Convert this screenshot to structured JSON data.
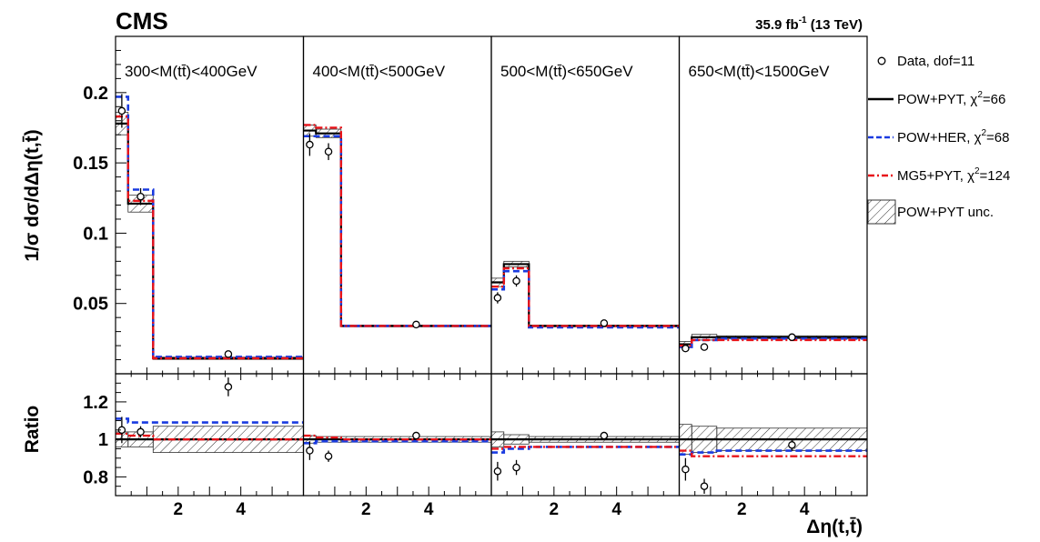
{
  "header": {
    "experiment": "CMS",
    "lumi_value": "35.9 fb",
    "lumi_exp": "-1",
    "lumi_energy": " (13 TeV)"
  },
  "axes": {
    "ylabel_main": "1/σ dσ/dΔη(t,t̄)",
    "ylabel_ratio": "Ratio",
    "xlabel": "Δη(t,t̄)"
  },
  "legend": [
    {
      "key": "data",
      "label": "Data, dof=11",
      "sup": "",
      "label_after": ""
    },
    {
      "key": "powpyt",
      "label": "POW+PYT, χ",
      "sup": "2",
      "label_after": "=66"
    },
    {
      "key": "powher",
      "label": "POW+HER, χ",
      "sup": "2",
      "label_after": "=68"
    },
    {
      "key": "mg5pyt",
      "label": "MG5+PYT, χ",
      "sup": "2",
      "label_after": "=124"
    },
    {
      "key": "unc",
      "label": "POW+PYT unc.",
      "sup": "",
      "label_after": ""
    }
  ],
  "chart_data": {
    "type": "line",
    "title": "",
    "xlabel": "Δη(t,t̄)",
    "ylabel": "1/σ dσ/dΔη(t,t̄)",
    "ratio_ylabel": "Ratio",
    "x_bin_edges": [
      0,
      0.4,
      1.2,
      6
    ],
    "xlim": [
      0,
      6
    ],
    "x_ticks": [
      2,
      4
    ],
    "ylim_main": [
      0,
      0.24
    ],
    "y_ticks_main": [
      0.05,
      0.1,
      0.15,
      0.2
    ],
    "ylim_ratio": [
      0.7,
      1.35
    ],
    "y_ticks_ratio": [
      0.8,
      1,
      1.2
    ],
    "colors": {
      "data": "#000000",
      "powpyt": "#000000",
      "powher": "#1a3be0",
      "mg5pyt": "#e8141a",
      "unc": "#333333"
    },
    "panels": [
      {
        "label": "300<M(tt̄)<400GeV",
        "data": [
          0.187,
          0.126,
          0.014
        ],
        "data_err": [
          0.012,
          0.006,
          0.001
        ],
        "powpyt": [
          0.178,
          0.121,
          0.011
        ],
        "powpyt_unc": [
          0.008,
          0.006,
          0.0008
        ],
        "powher": [
          0.197,
          0.131,
          0.012
        ],
        "mg5pyt": [
          0.183,
          0.123,
          0.011
        ],
        "ratio_data": [
          1.05,
          1.04,
          1.28
        ],
        "ratio_data_err": [
          0.07,
          0.03,
          0.05
        ],
        "ratio_powher": [
          1.11,
          1.09,
          1.09
        ],
        "ratio_mg5pyt": [
          1.03,
          1.02,
          1.0
        ],
        "ratio_unc": [
          0.04,
          0.04,
          0.07
        ]
      },
      {
        "label": "400<M(tt̄)<500GeV",
        "data": [
          0.163,
          0.158,
          0.035
        ],
        "data_err": [
          0.008,
          0.006,
          0.001
        ],
        "powpyt": [
          0.173,
          0.171,
          0.034
        ],
        "powpyt_unc": [
          0.004,
          0.003,
          0.0006
        ],
        "powher": [
          0.169,
          0.169,
          0.034
        ],
        "mg5pyt": [
          0.177,
          0.175,
          0.034
        ],
        "ratio_data": [
          0.94,
          0.91,
          1.02
        ],
        "ratio_data_err": [
          0.05,
          0.03,
          0.02
        ],
        "ratio_powher": [
          0.98,
          0.99,
          0.99
        ],
        "ratio_mg5pyt": [
          1.02,
          1.01,
          1.0
        ],
        "ratio_unc": [
          0.02,
          0.015,
          0.015
        ]
      },
      {
        "label": "500<M(tt̄)<650GeV",
        "data": [
          0.054,
          0.066,
          0.036
        ],
        "data_err": [
          0.004,
          0.004,
          0.001
        ],
        "powpyt": [
          0.065,
          0.078,
          0.034
        ],
        "powpyt_unc": [
          0.003,
          0.002,
          0.0006
        ],
        "powher": [
          0.06,
          0.073,
          0.033
        ],
        "mg5pyt": [
          0.062,
          0.075,
          0.034
        ],
        "ratio_data": [
          0.83,
          0.85,
          1.02
        ],
        "ratio_data_err": [
          0.05,
          0.04,
          0.02
        ],
        "ratio_powher": [
          0.93,
          0.95,
          0.96
        ],
        "ratio_mg5pyt": [
          0.95,
          0.96,
          0.96
        ],
        "ratio_unc": [
          0.04,
          0.025,
          0.015
        ]
      },
      {
        "label": "650<M(tt̄)<1500GeV",
        "data": [
          0.018,
          0.019,
          0.026
        ],
        "data_err": [
          0.0015,
          0.001,
          0.0008
        ],
        "powpyt": [
          0.021,
          0.026,
          0.026
        ],
        "powpyt_unc": [
          0.002,
          0.002,
          0.001
        ],
        "powher": [
          0.019,
          0.024,
          0.025
        ],
        "mg5pyt": [
          0.02,
          0.024,
          0.024
        ],
        "ratio_data": [
          0.84,
          0.75,
          0.97
        ],
        "ratio_data_err": [
          0.06,
          0.04,
          0.03
        ],
        "ratio_powher": [
          0.92,
          0.93,
          0.94
        ],
        "ratio_mg5pyt": [
          0.94,
          0.91,
          0.91
        ],
        "ratio_unc": [
          0.08,
          0.07,
          0.06
        ]
      }
    ]
  }
}
